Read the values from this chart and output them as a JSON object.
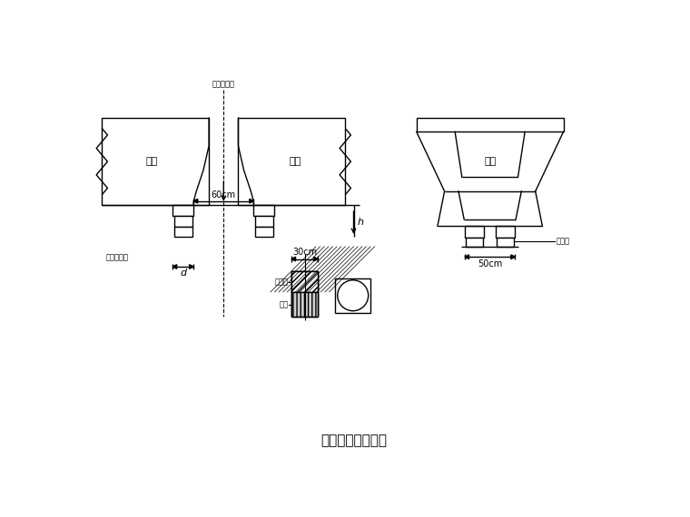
{
  "bg_color": "#ffffff",
  "lc": "#000000",
  "title": "非连续端临时支座",
  "label_60cm": "60cm",
  "label_50cm": "50cm",
  "label_30cm": "30cm",
  "label_d": "d",
  "label_h": "h",
  "label_zhu_liang1": "主梁",
  "label_zhu_liang2": "主梁",
  "label_duan_liang": "断梁",
  "label_qiaodun_zhongxian": "桥墩中心线",
  "label_linshi_zhicheng": "临时支承线",
  "label_ganban": "钢垫板",
  "label_mufang": "木方",
  "label_zhicheng": "支承"
}
